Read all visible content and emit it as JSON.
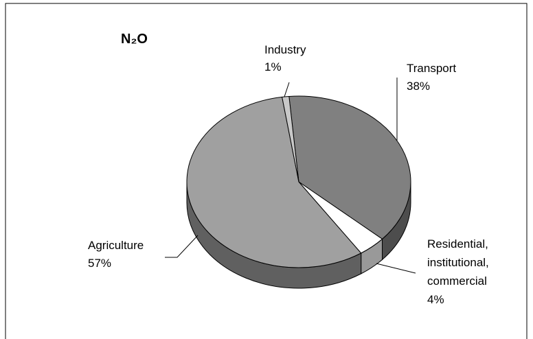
{
  "chart_data": {
    "type": "pie3d",
    "title": "N₂O",
    "categories": [
      "Transport",
      "Residential, institutional, commercial",
      "Agriculture",
      "Industry"
    ],
    "values": [
      38,
      4,
      57,
      1
    ],
    "value_labels": [
      "38%",
      "4%",
      "57%",
      "1%"
    ],
    "colors": [
      "#808080",
      "#ffffff",
      "#a0a0a0",
      "#c8c8c8"
    ]
  }
}
